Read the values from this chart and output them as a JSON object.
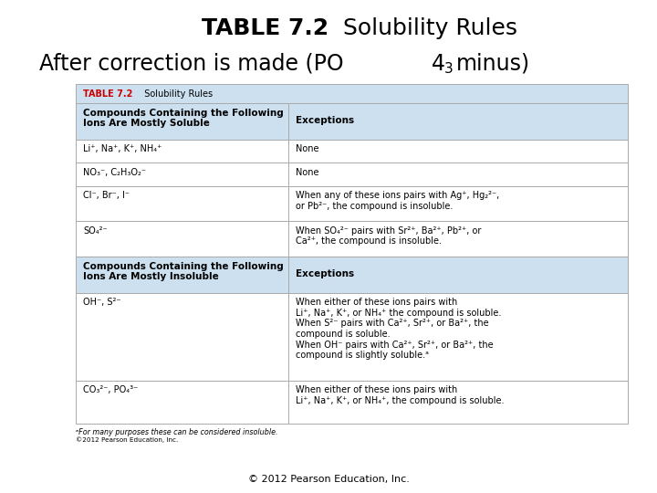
{
  "title_bold": "TABLE 7.2",
  "title_regular": "  Solubility Rules",
  "header_bg": "#cce0f0",
  "row_bg_white": "#ffffff",
  "table_border": "#aaaaaa",
  "red_color": "#cc0000",
  "copyright": "© 2012 Pearson Education, Inc.",
  "footnote": "ᵃFor many purposes these can be considered insoluble.",
  "footnote2": "©2012 Pearson Education, Inc.",
  "soluble_header_left": "Compounds Containing the Following\nIons Are Mostly Soluble",
  "soluble_header_right": "Exceptions",
  "insoluble_header_left": "Compounds Containing the Following\nIons Are Mostly Insoluble",
  "insoluble_header_right": "Exceptions",
  "soluble_rows": [
    [
      "Li⁺, Na⁺, K⁺, NH₄⁺",
      "None"
    ],
    [
      "NO₃⁻, C₂H₃O₂⁻",
      "None"
    ],
    [
      "Cl⁻, Br⁻, I⁻",
      "When any of these ions pairs with Ag⁺, Hg₂²⁻,\nor Pb²⁻, the compound is insoluble."
    ],
    [
      "SO₄²⁻",
      "When SO₄²⁻ pairs with Sr²⁺, Ba²⁺, Pb²⁺, or\nCa²⁺, the compound is insoluble."
    ]
  ],
  "insoluble_rows": [
    [
      "OH⁻, S²⁻",
      "When either of these ions pairs with\nLi⁺, Na⁺, K⁺, or NH₄⁺ the compound is soluble.\nWhen S²⁻ pairs with Ca²⁺, Sr²⁺, or Ba²⁺, the\ncompound is soluble.\nWhen OH⁻ pairs with Ca²⁺, Sr²⁺, or Ba²⁺, the\ncompound is slightly soluble.ᵃ"
    ],
    [
      "CO₃²⁻, PO₄³⁻",
      "When either of these ions pairs with\nLi⁺, Na⁺, K⁺, or NH₄⁺, the compound is soluble."
    ]
  ]
}
